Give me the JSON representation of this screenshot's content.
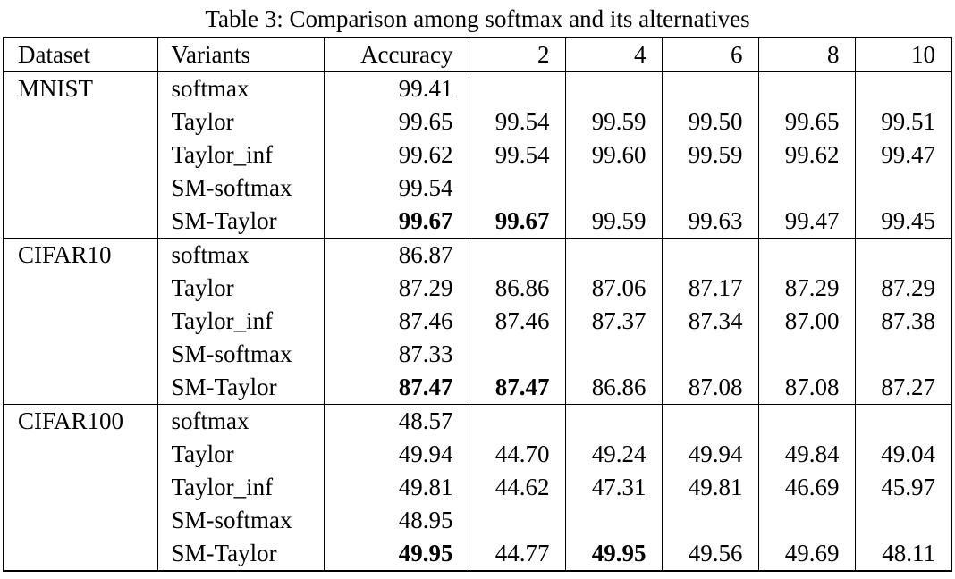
{
  "title": "Table 3: Comparison among softmax and its alternatives",
  "table": {
    "columns": [
      "Dataset",
      "Variants",
      "Accuracy",
      "2",
      "4",
      "6",
      "8",
      "10"
    ],
    "groups": [
      {
        "dataset": "MNIST",
        "rows": [
          {
            "variant": "softmax",
            "values": [
              "99.41",
              "",
              "",
              "",
              "",
              ""
            ],
            "bold": [
              false,
              false,
              false,
              false,
              false,
              false
            ]
          },
          {
            "variant": "Taylor",
            "values": [
              "99.65",
              "99.54",
              "99.59",
              "99.50",
              "99.65",
              "99.51"
            ],
            "bold": [
              false,
              false,
              false,
              false,
              false,
              false
            ]
          },
          {
            "variant": "Taylor_inf",
            "values": [
              "99.62",
              "99.54",
              "99.60",
              "99.59",
              "99.62",
              "99.47"
            ],
            "bold": [
              false,
              false,
              false,
              false,
              false,
              false
            ]
          },
          {
            "variant": "SM-softmax",
            "values": [
              "99.54",
              "",
              "",
              "",
              "",
              ""
            ],
            "bold": [
              false,
              false,
              false,
              false,
              false,
              false
            ]
          },
          {
            "variant": "SM-Taylor",
            "values": [
              "99.67",
              "99.67",
              "99.59",
              "99.63",
              "99.47",
              "99.45"
            ],
            "bold": [
              true,
              true,
              false,
              false,
              false,
              false
            ]
          }
        ]
      },
      {
        "dataset": "CIFAR10",
        "rows": [
          {
            "variant": "softmax",
            "values": [
              "86.87",
              "",
              "",
              "",
              "",
              ""
            ],
            "bold": [
              false,
              false,
              false,
              false,
              false,
              false
            ]
          },
          {
            "variant": "Taylor",
            "values": [
              "87.29",
              "86.86",
              "87.06",
              "87.17",
              "87.29",
              "87.29"
            ],
            "bold": [
              false,
              false,
              false,
              false,
              false,
              false
            ]
          },
          {
            "variant": "Taylor_inf",
            "values": [
              "87.46",
              "87.46",
              "87.37",
              "87.34",
              "87.00",
              "87.38"
            ],
            "bold": [
              false,
              false,
              false,
              false,
              false,
              false
            ]
          },
          {
            "variant": "SM-softmax",
            "values": [
              "87.33",
              "",
              "",
              "",
              "",
              ""
            ],
            "bold": [
              false,
              false,
              false,
              false,
              false,
              false
            ]
          },
          {
            "variant": "SM-Taylor",
            "values": [
              "87.47",
              "87.47",
              "86.86",
              "87.08",
              "87.08",
              "87.27"
            ],
            "bold": [
              true,
              true,
              false,
              false,
              false,
              false
            ]
          }
        ]
      },
      {
        "dataset": "CIFAR100",
        "rows": [
          {
            "variant": "softmax",
            "values": [
              "48.57",
              "",
              "",
              "",
              "",
              ""
            ],
            "bold": [
              false,
              false,
              false,
              false,
              false,
              false
            ]
          },
          {
            "variant": "Taylor",
            "values": [
              "49.94",
              "44.70",
              "49.24",
              "49.94",
              "49.84",
              "49.04"
            ],
            "bold": [
              false,
              false,
              false,
              false,
              false,
              false
            ]
          },
          {
            "variant": "Taylor_inf",
            "values": [
              "49.81",
              "44.62",
              "47.31",
              "49.81",
              "46.69",
              "45.97"
            ],
            "bold": [
              false,
              false,
              false,
              false,
              false,
              false
            ]
          },
          {
            "variant": "SM-softmax",
            "values": [
              "48.95",
              "",
              "",
              "",
              "",
              ""
            ],
            "bold": [
              false,
              false,
              false,
              false,
              false,
              false
            ]
          },
          {
            "variant": "SM-Taylor",
            "values": [
              "49.95",
              "44.77",
              "49.95",
              "49.56",
              "49.69",
              "48.11"
            ],
            "bold": [
              true,
              false,
              true,
              false,
              false,
              false
            ]
          }
        ]
      }
    ]
  }
}
